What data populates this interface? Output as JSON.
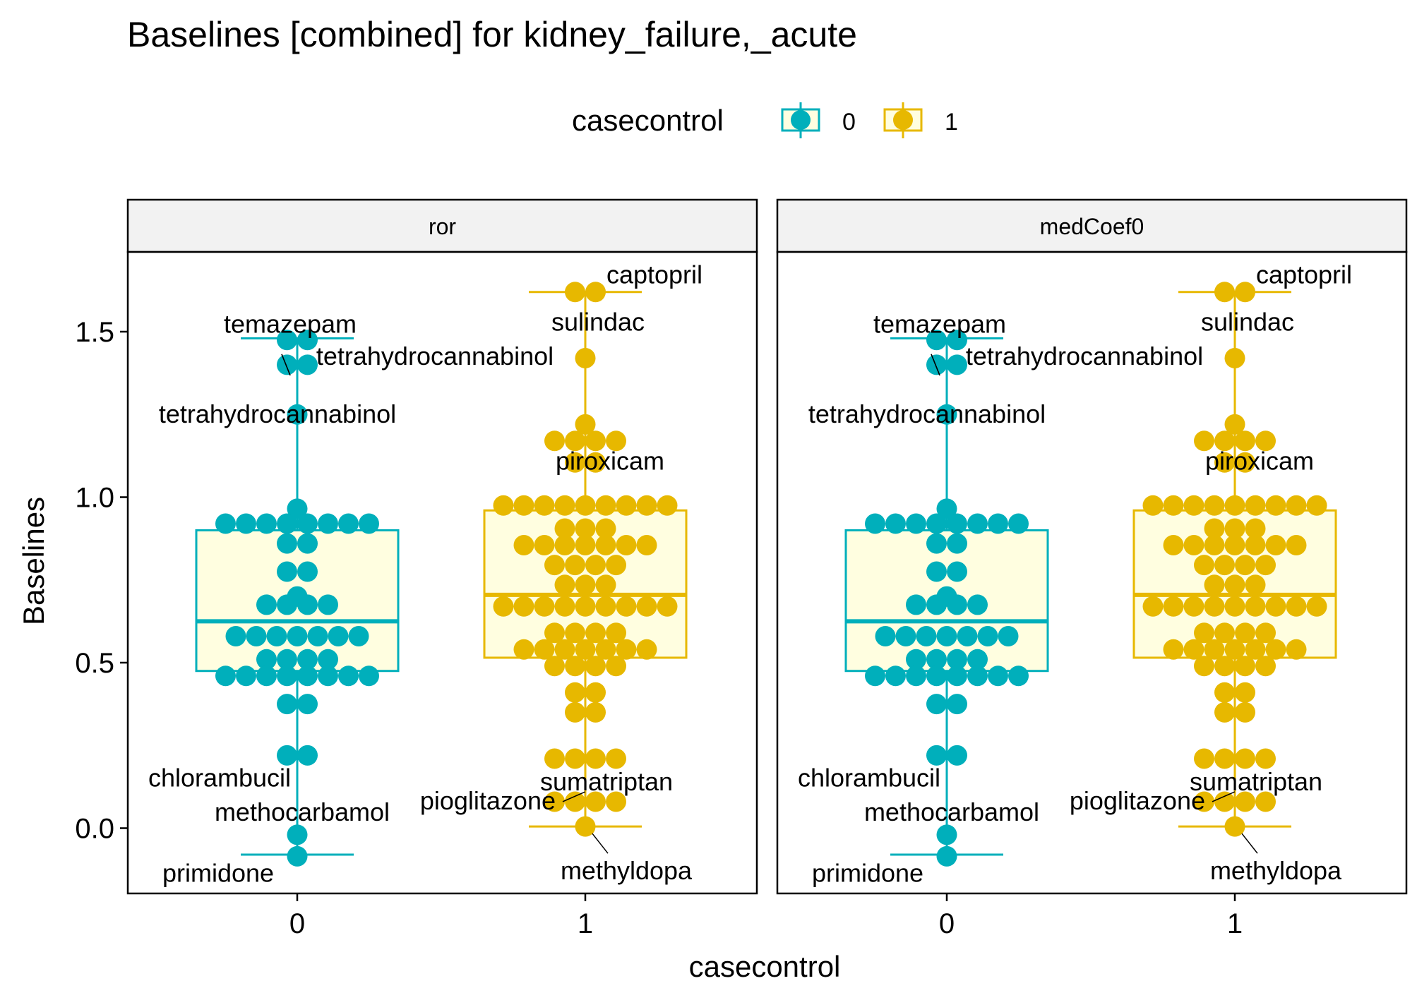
{
  "chart_data": {
    "type": "boxplot",
    "title": "Baselines [combined] for kidney_failure,_acute",
    "xlabel": "casecontrol",
    "ylabel": "Baselines",
    "categories": [
      "0",
      "1"
    ],
    "legend": {
      "title": "casecontrol",
      "items": [
        "0",
        "1"
      ],
      "position": "top"
    },
    "ylim": [
      -0.2,
      1.75
    ],
    "yticks": [
      0.0,
      0.5,
      1.0,
      1.5
    ],
    "ytick_labels": [
      "0.0",
      "0.5",
      "1.0",
      "1.5"
    ],
    "colors": {
      "0": "#00AFBB",
      "1": "#E7B800",
      "box_fill": "#FFFEE0",
      "strip_fill": "#F2F2F2"
    },
    "panels": [
      {
        "strip_label": "ror"
      },
      {
        "strip_label": "medCoef0"
      }
    ],
    "groups": [
      {
        "category": "0",
        "box": {
          "q1": 0.475,
          "median": 0.625,
          "q3": 0.9,
          "whisker_low": -0.08,
          "whisker_high": 1.48
        },
        "points": [
          {
            "y": 1.475,
            "n": 2
          },
          {
            "y": 1.4,
            "n": 2
          },
          {
            "y": 1.25,
            "n": 1
          },
          {
            "y": 0.965,
            "n": 1
          },
          {
            "y": 0.92,
            "n": 8
          },
          {
            "y": 0.86,
            "n": 2
          },
          {
            "y": 0.775,
            "n": 2
          },
          {
            "y": 0.7,
            "n": 1
          },
          {
            "y": 0.675,
            "n": 4
          },
          {
            "y": 0.58,
            "n": 7
          },
          {
            "y": 0.51,
            "n": 4
          },
          {
            "y": 0.46,
            "n": 8
          },
          {
            "y": 0.375,
            "n": 2
          },
          {
            "y": 0.22,
            "n": 2
          },
          {
            "y": -0.02,
            "n": 1
          },
          {
            "y": -0.085,
            "n": 1
          }
        ],
        "annotations": [
          {
            "label": "temazepam",
            "y": 1.475
          },
          {
            "label": "tetrahydrocannabinol",
            "y": 1.4
          },
          {
            "label": "tetrahydrocannabinol",
            "y": 1.4
          },
          {
            "label": "chlorambucil",
            "y": 0.22
          },
          {
            "label": "methocarbamol",
            "y": -0.02
          },
          {
            "label": "primidone",
            "y": -0.085
          }
        ]
      },
      {
        "category": "1",
        "box": {
          "q1": 0.515,
          "median": 0.705,
          "q3": 0.96,
          "whisker_low": 0.005,
          "whisker_high": 1.62
        },
        "points": [
          {
            "y": 1.62,
            "n": 2
          },
          {
            "y": 1.42,
            "n": 1
          },
          {
            "y": 1.22,
            "n": 1
          },
          {
            "y": 1.17,
            "n": 4
          },
          {
            "y": 1.105,
            "n": 2
          },
          {
            "y": 0.975,
            "n": 9
          },
          {
            "y": 0.905,
            "n": 3
          },
          {
            "y": 0.855,
            "n": 7
          },
          {
            "y": 0.795,
            "n": 4
          },
          {
            "y": 0.735,
            "n": 3
          },
          {
            "y": 0.67,
            "n": 9
          },
          {
            "y": 0.59,
            "n": 4
          },
          {
            "y": 0.54,
            "n": 7
          },
          {
            "y": 0.49,
            "n": 4
          },
          {
            "y": 0.41,
            "n": 2
          },
          {
            "y": 0.35,
            "n": 2
          },
          {
            "y": 0.21,
            "n": 4
          },
          {
            "y": 0.08,
            "n": 4
          },
          {
            "y": 0.005,
            "n": 1
          }
        ],
        "annotations": [
          {
            "label": "captopril",
            "y": 1.62
          },
          {
            "label": "sulindac",
            "y": 1.42
          },
          {
            "label": "piroxicam",
            "y": 1.22
          },
          {
            "label": "sumatriptan",
            "y": 0.08
          },
          {
            "label": "pioglitazone",
            "y": 0.08
          },
          {
            "label": "methyldopa",
            "y": 0.005
          }
        ]
      }
    ]
  }
}
